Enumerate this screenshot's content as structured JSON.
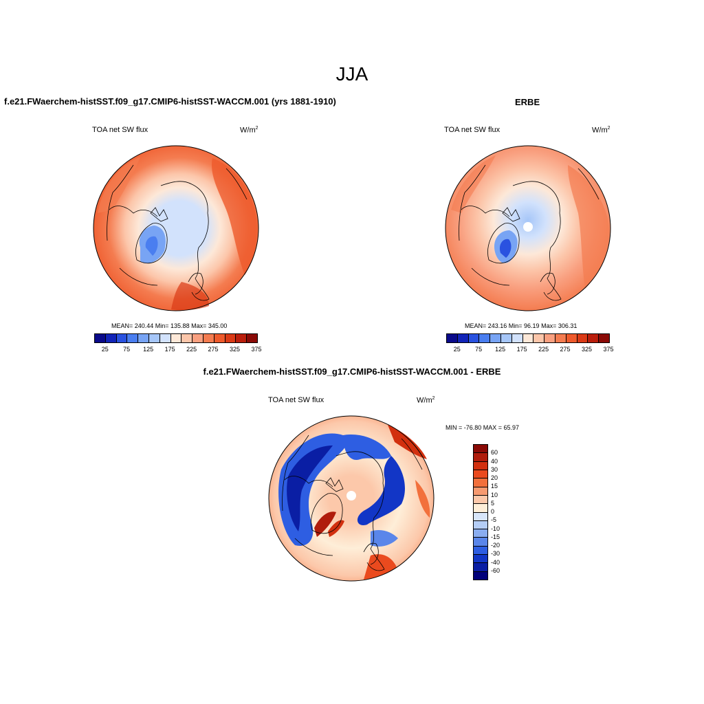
{
  "title": "JJA",
  "colors": {
    "seq": [
      "#0a0a8a",
      "#1224b8",
      "#2a52e0",
      "#4a7ef0",
      "#78a4f4",
      "#a6c6f8",
      "#d2e2fc",
      "#fde8d8",
      "#fcc6aa",
      "#f9a080",
      "#f47c50",
      "#ee5a2c",
      "#da3a16",
      "#ba1e0c",
      "#8a0a06"
    ],
    "div": [
      "#8a0a06",
      "#b01c0c",
      "#d2300f",
      "#ea4a1e",
      "#f2703c",
      "#f79a70",
      "#fcc8aa",
      "#feeed8",
      "#d8e6fa",
      "#b4cdf6",
      "#8aadf0",
      "#5a86ea",
      "#2e5ee2",
      "#1236c6",
      "#0a1ea4",
      "#00007a"
    ],
    "land": "#000000"
  },
  "panels": [
    {
      "title": "f.e21.FWaerchem-histSST.f09_g17.CMIP6-histSST-WACCM.001 (yrs 1881-1910)",
      "variable": "TOA net SW flux",
      "unit": "W/m",
      "unit_sup": "2",
      "stats": "MEAN= 240.44  Min= 135.88  Max= 345.00"
    },
    {
      "title": "ERBE",
      "variable": "TOA net SW flux",
      "unit": "W/m",
      "unit_sup": "2",
      "stats": "MEAN= 243.16  Min=  96.19  Max= 306.31"
    }
  ],
  "seq_ticks": [
    "25",
    "75",
    "125",
    "175",
    "225",
    "275",
    "325",
    "375"
  ],
  "diff": {
    "title": "f.e21.FWaerchem-histSST.f09_g17.CMIP6-histSST-WACCM.001 - ERBE",
    "variable": "TOA net SW flux",
    "unit": "W/m",
    "unit_sup": "2",
    "stats": "MIN = -76.80 MAX =  65.97",
    "levels": [
      "60",
      "40",
      "30",
      "20",
      "15",
      "10",
      "5",
      "0",
      "-5",
      "-10",
      "-15",
      "-20",
      "-30",
      "-40",
      "-60"
    ]
  }
}
